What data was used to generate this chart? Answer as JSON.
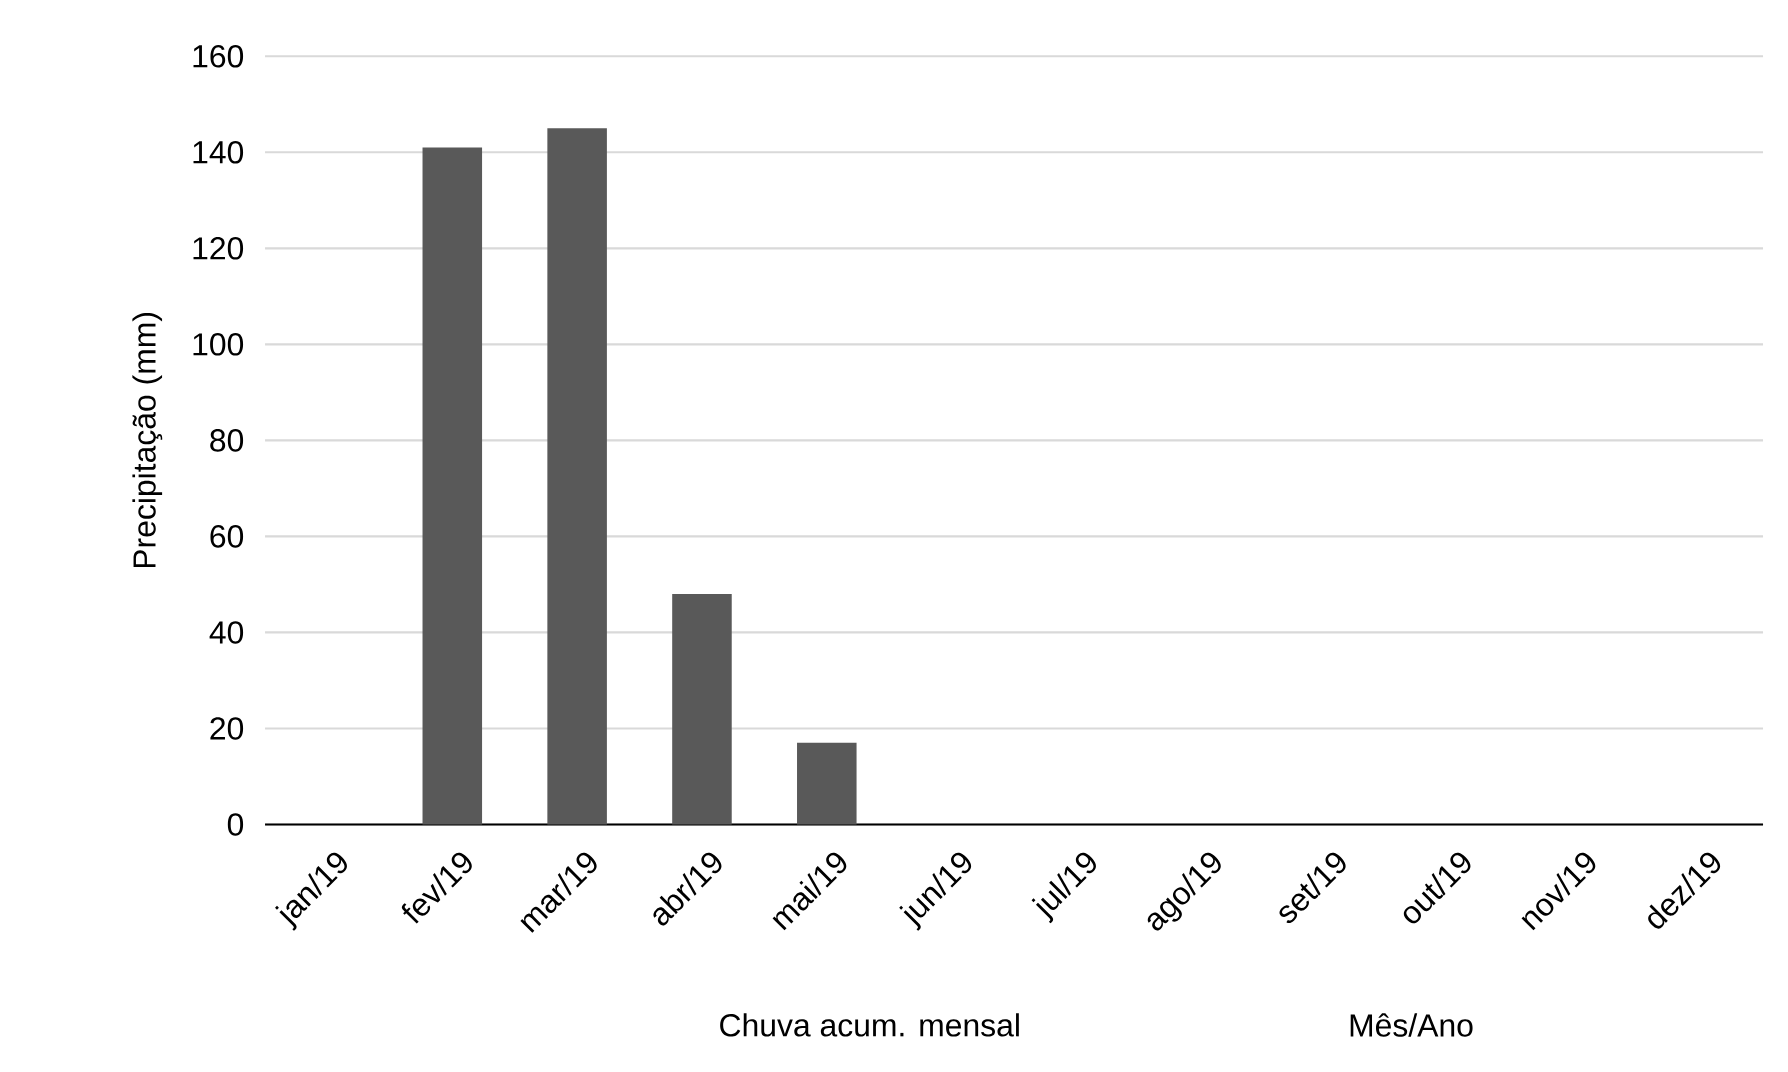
{
  "chart_data": {
    "type": "bar",
    "ylabel": "Precipitação (mm)",
    "xlabel": "Mês/Ano",
    "categories": [
      "jan/19",
      "fev/19",
      "mar/19",
      "abr/19",
      "mai/19",
      "jun/19",
      "jul/19",
      "ago/19",
      "set/19",
      "out/19",
      "nov/19",
      "dez/19"
    ],
    "values": [
      0,
      141,
      145,
      48,
      17,
      0,
      0,
      0,
      0,
      0,
      0,
      0
    ],
    "color": "#595959",
    "ylim": [
      0,
      160
    ],
    "yticks": [
      0,
      20,
      40,
      60,
      80,
      100,
      120,
      140,
      160
    ],
    "grid": "y",
    "annotations": [
      "Chuva acum. mensal"
    ]
  }
}
